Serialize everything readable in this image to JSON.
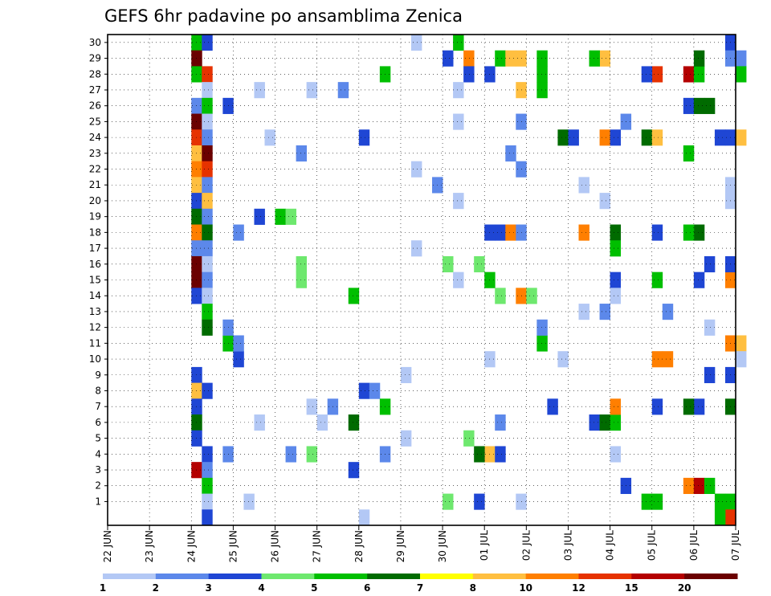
{
  "chart_data": {
    "type": "heatmap",
    "title": "GEFS 6hr padavine po ansamblima Zenica",
    "xlabel": "",
    "ylabel": "",
    "x_ticks": [
      "22 JUN",
      "23 JUN",
      "24 JUN",
      "25 JUN",
      "26 JUN",
      "27 JUN",
      "28 JUN",
      "29 JUN",
      "30 JUN",
      "01 JUL",
      "02 JUL",
      "03 JUL",
      "04 JUL",
      "05 JUL",
      "06 JUL",
      "07 JUL"
    ],
    "x_range": [
      "22 JUN 00z",
      "07 JUL 00z"
    ],
    "x_step_hours": 6,
    "y_ticks": [
      "1",
      "2",
      "3",
      "4",
      "5",
      "6",
      "7",
      "8",
      "9",
      "10",
      "11",
      "12",
      "13",
      "14",
      "15",
      "16",
      "17",
      "18",
      "19",
      "20",
      "21",
      "22",
      "23",
      "24",
      "25",
      "26",
      "27",
      "28",
      "29",
      "30"
    ],
    "y_range": [
      0,
      30
    ],
    "grid": true,
    "colorbar": {
      "labels": [
        "1",
        "2",
        "3",
        "4",
        "5",
        "6",
        "7",
        "8",
        "10",
        "12",
        "15",
        "20"
      ],
      "colors": [
        "#b3c8f5",
        "#5c88ea",
        "#1f46d4",
        "#6ee86e",
        "#00bf00",
        "#006b00",
        "#ffff00",
        "#ffbf40",
        "#ff7f00",
        "#e63200",
        "#b40000",
        "#6b0000"
      ]
    },
    "cells": [
      {
        "x": "24 JUN 00z",
        "y": 30,
        "v": 5
      },
      {
        "x": "24 JUN 06z",
        "y": 30,
        "v": 3
      },
      {
        "x": "24 JUN 00z",
        "y": 29,
        "v": 20
      },
      {
        "x": "24 JUN 00z",
        "y": 28,
        "v": 5
      },
      {
        "x": "24 JUN 06z",
        "y": 28,
        "v": 12
      },
      {
        "x": "24 JUN 06z",
        "y": 27,
        "v": 1
      },
      {
        "x": "24 JUN 00z",
        "y": 26,
        "v": 2
      },
      {
        "x": "24 JUN 06z",
        "y": 26,
        "v": 5
      },
      {
        "x": "24 JUN 00z",
        "y": 25,
        "v": 20
      },
      {
        "x": "24 JUN 06z",
        "y": 25,
        "v": 1
      },
      {
        "x": "24 JUN 00z",
        "y": 24,
        "v": 12
      },
      {
        "x": "24 JUN 06z",
        "y": 24,
        "v": 2
      },
      {
        "x": "24 JUN 00z",
        "y": 23,
        "v": 8
      },
      {
        "x": "24 JUN 06z",
        "y": 23,
        "v": 20
      },
      {
        "x": "24 JUN 00z",
        "y": 22,
        "v": 10
      },
      {
        "x": "24 JUN 06z",
        "y": 22,
        "v": 12
      },
      {
        "x": "24 JUN 00z",
        "y": 21,
        "v": 8
      },
      {
        "x": "24 JUN 06z",
        "y": 21,
        "v": 2
      },
      {
        "x": "24 JUN 00z",
        "y": 20,
        "v": 3
      },
      {
        "x": "24 JUN 06z",
        "y": 20,
        "v": 8
      },
      {
        "x": "24 JUN 00z",
        "y": 19,
        "v": 6
      },
      {
        "x": "24 JUN 06z",
        "y": 19,
        "v": 2
      },
      {
        "x": "24 JUN 00z",
        "y": 18,
        "v": 10
      },
      {
        "x": "24 JUN 06z",
        "y": 18,
        "v": 6
      },
      {
        "x": "24 JUN 00z",
        "y": 17,
        "v": 2
      },
      {
        "x": "24 JUN 06z",
        "y": 17,
        "v": 2
      },
      {
        "x": "24 JUN 00z",
        "y": 16,
        "v": 20
      },
      {
        "x": "24 JUN 06z",
        "y": 16,
        "v": 1
      },
      {
        "x": "24 JUN 00z",
        "y": 15,
        "v": 20
      },
      {
        "x": "24 JUN 06z",
        "y": 15,
        "v": 2
      },
      {
        "x": "24 JUN 00z",
        "y": 14,
        "v": 3
      },
      {
        "x": "24 JUN 06z",
        "y": 14,
        "v": 1
      },
      {
        "x": "24 JUN 06z",
        "y": 13,
        "v": 5
      },
      {
        "x": "24 JUN 06z",
        "y": 12,
        "v": 6
      },
      {
        "x": "24 JUN 00z",
        "y": 9,
        "v": 3
      },
      {
        "x": "24 JUN 00z",
        "y": 8,
        "v": 8
      },
      {
        "x": "24 JUN 06z",
        "y": 8,
        "v": 3
      },
      {
        "x": "24 JUN 00z",
        "y": 7,
        "v": 3
      },
      {
        "x": "24 JUN 00z",
        "y": 6,
        "v": 6
      },
      {
        "x": "24 JUN 00z",
        "y": 5,
        "v": 3
      },
      {
        "x": "24 JUN 06z",
        "y": 4,
        "v": 3
      },
      {
        "x": "24 JUN 00z",
        "y": 3,
        "v": 15
      },
      {
        "x": "24 JUN 06z",
        "y": 3,
        "v": 2
      },
      {
        "x": "24 JUN 06z",
        "y": 2,
        "v": 5
      },
      {
        "x": "24 JUN 06z",
        "y": 1,
        "v": 1
      },
      {
        "x": "24 JUN 06z",
        "y": 0,
        "v": 3
      },
      {
        "x": "24 JUN 18z",
        "y": 26,
        "v": 3
      },
      {
        "x": "25 JUN 00z",
        "y": 10,
        "v": 3
      },
      {
        "x": "24 JUN 18z",
        "y": 11,
        "v": 5
      },
      {
        "x": "26 JUN 00z",
        "y": 19,
        "v": 5
      },
      {
        "x": "26 JUN 06z",
        "y": 19,
        "v": 4
      },
      {
        "x": "26 JUN 12z",
        "y": 15,
        "v": 4
      },
      {
        "x": "26 JUN 18z",
        "y": 4,
        "v": 4
      },
      {
        "x": "27 JUN 18z",
        "y": 6,
        "v": 6
      },
      {
        "x": "27 JUN 18z",
        "y": 14,
        "v": 5
      },
      {
        "x": "28 JUN 00z",
        "y": 24,
        "v": 3
      },
      {
        "x": "28 JUN 00z",
        "y": 8,
        "v": 3
      },
      {
        "x": "28 JUN 06z",
        "y": 8,
        "v": 2
      },
      {
        "x": "30 JUN 06z",
        "y": 30,
        "v": 5
      },
      {
        "x": "30 JUN 00z",
        "y": 29,
        "v": 3
      },
      {
        "x": "30 JUN 12z",
        "y": 29,
        "v": 10
      },
      {
        "x": "30 JUN 12z",
        "y": 28,
        "v": 3
      },
      {
        "x": "01 JUL 00z",
        "y": 28,
        "v": 3
      },
      {
        "x": "01 JUL 06z",
        "y": 29,
        "v": 5
      },
      {
        "x": "01 JUL 12z",
        "y": 29,
        "v": 8
      },
      {
        "x": "01 JUL 18z",
        "y": 29,
        "v": 8
      },
      {
        "x": "30 JUN 00z",
        "y": 16,
        "v": 4
      },
      {
        "x": "30 JUN 18z",
        "y": 16,
        "v": 4
      },
      {
        "x": "01 JUL 00z",
        "y": 15,
        "v": 5
      },
      {
        "x": "01 JUL 06z",
        "y": 14,
        "v": 4
      },
      {
        "x": "01 JUL 00z",
        "y": 18,
        "v": 3
      },
      {
        "x": "01 JUL 06z",
        "y": 18,
        "v": 3
      },
      {
        "x": "30 JUN 00z",
        "y": 1,
        "v": 4
      },
      {
        "x": "30 JUN 18z",
        "y": 1,
        "v": 3
      },
      {
        "x": "01 JUL 00z",
        "y": 4,
        "v": 8
      },
      {
        "x": "30 JUN 18z",
        "y": 4,
        "v": 6
      },
      {
        "x": "30 JUN 12z",
        "y": 5,
        "v": 4
      },
      {
        "x": "01 JUL 12z",
        "y": 18,
        "v": 10
      },
      {
        "x": "01 JUL 18z",
        "y": 18,
        "v": 2
      },
      {
        "x": "01 JUL 18z",
        "y": 14,
        "v": 10
      },
      {
        "x": "02 JUL 00z",
        "y": 14,
        "v": 4
      },
      {
        "x": "01 JUL 18z",
        "y": 27,
        "v": 8
      },
      {
        "x": "01 JUL 06z",
        "y": 4,
        "v": 3
      },
      {
        "x": "02 JUL 18z",
        "y": 24,
        "v": 6
      },
      {
        "x": "03 JUL 00z",
        "y": 24,
        "v": 3
      },
      {
        "x": "03 JUL 06z",
        "y": 18,
        "v": 10
      },
      {
        "x": "03 JUL 12z",
        "y": 6,
        "v": 3
      },
      {
        "x": "03 JUL 18z",
        "y": 6,
        "v": 6
      },
      {
        "x": "04 JUL 00z",
        "y": 6,
        "v": 5
      },
      {
        "x": "03 JUL 18z",
        "y": 24,
        "v": 10
      },
      {
        "x": "04 JUL 00z",
        "y": 24,
        "v": 3
      },
      {
        "x": "03 JUL 18z",
        "y": 29,
        "v": 8
      },
      {
        "x": "04 JUL 00z",
        "y": 18,
        "v": 6
      },
      {
        "x": "04 JUL 00z",
        "y": 17,
        "v": 5
      },
      {
        "x": "04 JUL 00z",
        "y": 15,
        "v": 3
      },
      {
        "x": "04 JUL 06z",
        "y": 2,
        "v": 3
      },
      {
        "x": "04 JUL 00z",
        "y": 7,
        "v": 10
      },
      {
        "x": "04 JUL 18z",
        "y": 24,
        "v": 6
      },
      {
        "x": "05 JUL 00z",
        "y": 24,
        "v": 8
      },
      {
        "x": "05 JUL 00z",
        "y": 28,
        "v": 12
      },
      {
        "x": "04 JUL 18z",
        "y": 28,
        "v": 3
      },
      {
        "x": "05 JUL 00z",
        "y": 18,
        "v": 3
      },
      {
        "x": "05 JUL 00z",
        "y": 15,
        "v": 5
      },
      {
        "x": "05 JUL 00z",
        "y": 10,
        "v": 10
      },
      {
        "x": "05 JUL 06z",
        "y": 10,
        "v": 10
      },
      {
        "x": "05 JUL 00z",
        "y": 7,
        "v": 3
      },
      {
        "x": "04 JUL 18z",
        "y": 1,
        "v": 5
      },
      {
        "x": "05 JUL 00z",
        "y": 1,
        "v": 5
      },
      {
        "x": "05 JUL 18z",
        "y": 26,
        "v": 3
      },
      {
        "x": "06 JUL 00z",
        "y": 26,
        "v": 6
      },
      {
        "x": "06 JUL 06z",
        "y": 26,
        "v": 6
      },
      {
        "x": "05 JUL 18z",
        "y": 2,
        "v": 10
      },
      {
        "x": "06 JUL 00z",
        "y": 2,
        "v": 15
      },
      {
        "x": "06 JUL 06z",
        "y": 2,
        "v": 5
      },
      {
        "x": "06 JUL 00z",
        "y": 7,
        "v": 3
      },
      {
        "x": "05 JUL 18z",
        "y": 7,
        "v": 6
      },
      {
        "x": "05 JUL 18z",
        "y": 28,
        "v": 15
      },
      {
        "x": "06 JUL 00z",
        "y": 28,
        "v": 5
      },
      {
        "x": "06 JUL 00z",
        "y": 29,
        "v": 6
      },
      {
        "x": "05 JUL 18z",
        "y": 23,
        "v": 5
      },
      {
        "x": "06 JUL 00z",
        "y": 18,
        "v": 6
      },
      {
        "x": "05 JUL 18z",
        "y": 18,
        "v": 5
      },
      {
        "x": "06 JUL 06z",
        "y": 16,
        "v": 3
      },
      {
        "x": "06 JUL 00z",
        "y": 15,
        "v": 3
      },
      {
        "x": "06 JUL 06z",
        "y": 9,
        "v": 3
      },
      {
        "x": "06 JUL 12z",
        "y": 24,
        "v": 3
      },
      {
        "x": "06 JUL 18z",
        "y": 24,
        "v": 3
      },
      {
        "x": "07 JUL 00z",
        "y": 24,
        "v": 8
      },
      {
        "x": "06 JUL 12z",
        "y": 1,
        "v": 5
      },
      {
        "x": "06 JUL 18z",
        "y": 1,
        "v": 5
      },
      {
        "x": "06 JUL 18z",
        "y": 0,
        "v": 12
      },
      {
        "x": "06 JUL 12z",
        "y": 0,
        "v": 5
      },
      {
        "x": "06 JUL 18z",
        "y": 15,
        "v": 10
      },
      {
        "x": "06 JUL 18z",
        "y": 11,
        "v": 10
      },
      {
        "x": "07 JUL 00z",
        "y": 11,
        "v": 8
      },
      {
        "x": "06 JUL 18z",
        "y": 16,
        "v": 3
      },
      {
        "x": "06 JUL 18z",
        "y": 7,
        "v": 6
      },
      {
        "x": "06 JUL 18z",
        "y": 9,
        "v": 3
      },
      {
        "x": "06 JUL 18z",
        "y": 30,
        "v": 3
      },
      {
        "x": "06 JUL 18z",
        "y": 29,
        "v": 2
      },
      {
        "x": "07 JUL 00z",
        "y": 29,
        "v": 2
      },
      {
        "x": "07 JUL 00z",
        "y": 28,
        "v": 5
      },
      {
        "x": "02 JUL 06z",
        "y": 11,
        "v": 5
      },
      {
        "x": "02 JUL 06z",
        "y": 12,
        "v": 2
      },
      {
        "x": "02 JUL 06z",
        "y": 28,
        "v": 5
      },
      {
        "x": "02 JUL 06z",
        "y": 27,
        "v": 5
      },
      {
        "x": "02 JUL 06z",
        "y": 29,
        "v": 5
      },
      {
        "x": "02 JUL 12z",
        "y": 7,
        "v": 3
      },
      {
        "x": "03 JUL 12z",
        "y": 29,
        "v": 5
      },
      {
        "x": "04 JUL 00z",
        "y": 4,
        "v": 1
      },
      {
        "x": "28 JUN 12z",
        "y": 7,
        "v": 5
      },
      {
        "x": "28 JUN 12z",
        "y": 28,
        "v": 5
      },
      {
        "x": "27 JUN 06z",
        "y": 7,
        "v": 2
      },
      {
        "x": "27 JUN 12z",
        "y": 27,
        "v": 2
      },
      {
        "x": "27 JUN 18z",
        "y": 3,
        "v": 3
      },
      {
        "x": "26 JUN 12z",
        "y": 16,
        "v": 4
      },
      {
        "x": "25 JUN 12z",
        "y": 19,
        "v": 3
      },
      {
        "x": "29 JUN 18z",
        "y": 21,
        "v": 2
      },
      {
        "x": "28 JUN 12z",
        "y": 4,
        "v": 2
      },
      {
        "x": "26 JUN 06z",
        "y": 4,
        "v": 2
      },
      {
        "x": "26 JUN 12z",
        "y": 23,
        "v": 2
      },
      {
        "x": "25 JUN 00z",
        "y": 18,
        "v": 2
      },
      {
        "x": "25 JUN 00z",
        "y": 11,
        "v": 2
      },
      {
        "x": "24 JUN 18z",
        "y": 12,
        "v": 2
      },
      {
        "x": "24 JUN 18z",
        "y": 4,
        "v": 2
      },
      {
        "x": "01 JUL 12z",
        "y": 23,
        "v": 2
      },
      {
        "x": "01 JUL 18z",
        "y": 25,
        "v": 2
      },
      {
        "x": "01 JUL 06z",
        "y": 6,
        "v": 2
      },
      {
        "x": "01 JUL 18z",
        "y": 22,
        "v": 2
      },
      {
        "x": "03 JUL 18z",
        "y": 13,
        "v": 2
      },
      {
        "x": "04 JUL 06z",
        "y": 25,
        "v": 2
      },
      {
        "x": "05 JUL 06z",
        "y": 13,
        "v": 2
      },
      {
        "x": "30 JUN 06z",
        "y": 15,
        "v": 1
      },
      {
        "x": "30 JUN 06z",
        "y": 27,
        "v": 1
      },
      {
        "x": "29 JUN 06z",
        "y": 30,
        "v": 1
      },
      {
        "x": "29 JUN 00z",
        "y": 9,
        "v": 1
      },
      {
        "x": "25 JUN 12z",
        "y": 27,
        "v": 1
      },
      {
        "x": "26 JUN 18z",
        "y": 27,
        "v": 1
      },
      {
        "x": "25 JUN 06z",
        "y": 1,
        "v": 1
      },
      {
        "x": "25 JUN 12z",
        "y": 6,
        "v": 1
      },
      {
        "x": "26 JUN 18z",
        "y": 7,
        "v": 1
      },
      {
        "x": "27 JUN 00z",
        "y": 6,
        "v": 1
      },
      {
        "x": "29 JUN 00z",
        "y": 5,
        "v": 1
      },
      {
        "x": "28 JUN 00z",
        "y": 0,
        "v": 1
      },
      {
        "x": "25 JUN 18z",
        "y": 24,
        "v": 1
      },
      {
        "x": "29 JUN 06z",
        "y": 22,
        "v": 1
      },
      {
        "x": "29 JUN 06z",
        "y": 17,
        "v": 1
      },
      {
        "x": "30 JUN 06z",
        "y": 25,
        "v": 1
      },
      {
        "x": "30 JUN 06z",
        "y": 20,
        "v": 1
      },
      {
        "x": "01 JUL 00z",
        "y": 10,
        "v": 1
      },
      {
        "x": "01 JUL 18z",
        "y": 1,
        "v": 1
      },
      {
        "x": "02 JUL 18z",
        "y": 10,
        "v": 1
      },
      {
        "x": "03 JUL 06z",
        "y": 13,
        "v": 1
      },
      {
        "x": "03 JUL 06z",
        "y": 21,
        "v": 1
      },
      {
        "x": "03 JUL 18z",
        "y": 20,
        "v": 1
      },
      {
        "x": "04 JUL 00z",
        "y": 14,
        "v": 1
      },
      {
        "x": "06 JUL 06z",
        "y": 12,
        "v": 1
      },
      {
        "x": "06 JUL 18z",
        "y": 21,
        "v": 1
      },
      {
        "x": "06 JUL 18z",
        "y": 20,
        "v": 1
      },
      {
        "x": "07 JUL 00z",
        "y": 10,
        "v": 1
      }
    ]
  }
}
